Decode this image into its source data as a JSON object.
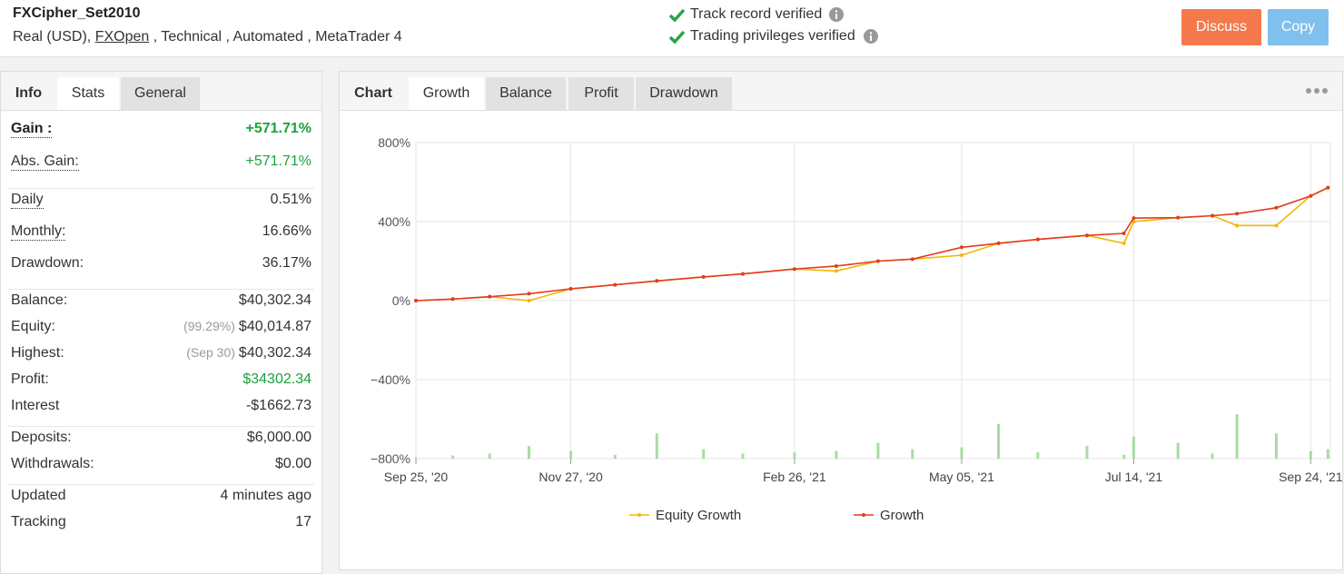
{
  "header": {
    "title": "FXCipher_Set2010",
    "subtitle": {
      "prefix": "Real (USD), ",
      "broker": "FXOpen",
      "suffix": " , Technical , Automated , MetaTrader 4"
    },
    "verified": [
      "Track record verified",
      "Trading privileges verified"
    ],
    "buttons": [
      "Discuss",
      "Copy"
    ]
  },
  "left_tabs": [
    "Info",
    "Stats",
    "General"
  ],
  "stats": [
    [
      {
        "label": "Gain :",
        "value": "+571.71%"
      },
      {
        "label": "Abs. Gain:",
        "value": "+571.71%"
      }
    ],
    [
      {
        "label": "Daily",
        "value": "0.51%"
      },
      {
        "label": "Monthly:",
        "value": "16.66%"
      },
      {
        "label": "Drawdown:",
        "value": "36.17%"
      }
    ],
    [
      {
        "label": "Balance:",
        "value": "$40,302.34"
      },
      {
        "label": "Equity:",
        "note": "(99.29%)",
        "value": "$40,014.87"
      },
      {
        "label": "Highest:",
        "note": "(Sep 30)",
        "value": "$40,302.34"
      },
      {
        "label": "Profit:",
        "value": "$34302.34"
      },
      {
        "label": "Interest",
        "value": "-$1662.73"
      }
    ],
    [
      {
        "label": "Deposits:",
        "value": "$6,000.00"
      },
      {
        "label": "Withdrawals:",
        "value": "$0.00"
      }
    ],
    [
      {
        "label": "Updated",
        "value": "4 minutes ago"
      },
      {
        "label": "Tracking",
        "value": "17"
      }
    ]
  ],
  "chart_tabs": [
    "Chart",
    "Growth",
    "Balance",
    "Profit",
    "Drawdown"
  ],
  "chart_data": {
    "type": "line",
    "x": [
      "2020-09-25",
      "2020-10-10",
      "2020-10-25",
      "2020-11-10",
      "2020-11-27",
      "2020-12-15",
      "2021-01-01",
      "2021-01-20",
      "2021-02-05",
      "2021-02-26",
      "2021-03-15",
      "2021-04-01",
      "2021-04-15",
      "2021-05-05",
      "2021-05-20",
      "2021-06-05",
      "2021-06-25",
      "2021-07-10",
      "2021-07-14",
      "2021-08-01",
      "2021-08-15",
      "2021-08-25",
      "2021-09-10",
      "2021-09-24",
      "2021-10-01"
    ],
    "xlim": [
      "2020-09-25",
      "2021-10-02"
    ],
    "xticks": [
      {
        "value": "2020-09-25",
        "label": "Sep 25, '20"
      },
      {
        "value": "2020-11-27",
        "label": "Nov 27, '20"
      },
      {
        "value": "2021-02-26",
        "label": "Feb 26, '21"
      },
      {
        "value": "2021-05-05",
        "label": "May 05, '21"
      },
      {
        "value": "2021-07-14",
        "label": "Jul 14, '21"
      },
      {
        "value": "2021-09-24",
        "label": "Sep 24, '21"
      }
    ],
    "ylim": [
      -800,
      800
    ],
    "yticks": [
      {
        "value": -800,
        "label": "−800%"
      },
      {
        "value": -400,
        "label": "−400%"
      },
      {
        "value": 0,
        "label": "0%"
      },
      {
        "value": 400,
        "label": "400%"
      },
      {
        "value": 800,
        "label": "800%"
      }
    ],
    "grid": true,
    "series": [
      {
        "name": "Equity Growth",
        "color": "#f2b705",
        "values": [
          0,
          8,
          20,
          0,
          60,
          80,
          100,
          120,
          135,
          160,
          150,
          200,
          210,
          230,
          290,
          310,
          330,
          290,
          400,
          420,
          430,
          380,
          380,
          530,
          572
        ]
      },
      {
        "name": "Growth",
        "color": "#e33b1f",
        "values": [
          0,
          8,
          20,
          35,
          60,
          80,
          100,
          120,
          135,
          160,
          175,
          200,
          210,
          270,
          290,
          310,
          330,
          340,
          418,
          420,
          430,
          440,
          470,
          530,
          572
        ]
      }
    ],
    "bars": {
      "color": "#a9dba3",
      "y2lim": [
        0,
        500
      ],
      "values": [
        2,
        5,
        8,
        20,
        12,
        6,
        40,
        15,
        8,
        10,
        12,
        25,
        15,
        18,
        55,
        10,
        20,
        6,
        35,
        25,
        8,
        70,
        40,
        12,
        15
      ]
    }
  }
}
